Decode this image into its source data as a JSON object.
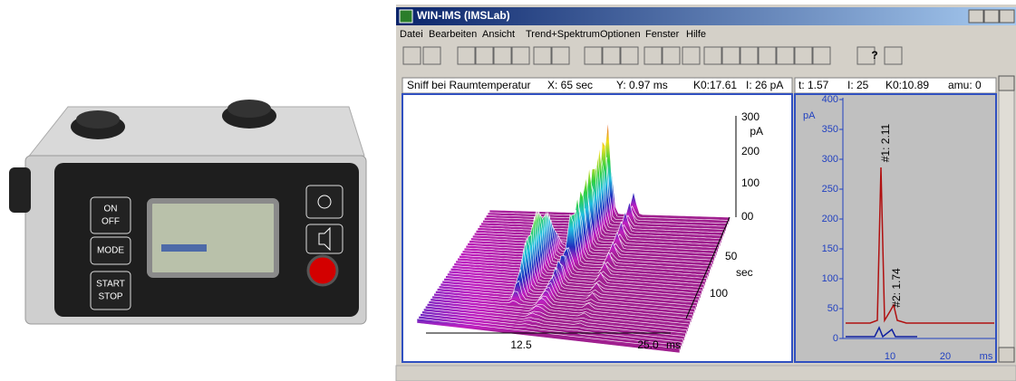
{
  "device": {
    "buttons": {
      "on_off": [
        "ON",
        "OFF"
      ],
      "mode": "MODE",
      "start_stop": [
        "START",
        "STOP"
      ]
    }
  },
  "window": {
    "title": "WIN-IMS (IMSLab)",
    "menu": [
      "Datei",
      "Bearbeiten",
      "Ansicht",
      "Trend+Spektrum",
      "Optionen",
      "Fenster",
      "Hilfe"
    ],
    "toolbar_help": "?",
    "status_left": [
      "Sniff bei Raumtemperatur",
      "X: 65 sec",
      "Y: 0.97 ms",
      "K0:17.61",
      "I: 26 pA"
    ],
    "status_right": [
      "t: 1.57",
      "I: 25",
      "K0:10.89",
      "amu:  0"
    ]
  },
  "waterfall": {
    "z_ticks": [
      "300",
      "200",
      "100",
      "00"
    ],
    "z_unit": "pA",
    "depth_ticks": [
      "50",
      "100"
    ],
    "depth_unit": "sec",
    "x_ticks": [
      "12.5",
      "25.0"
    ],
    "x_unit": "ms"
  },
  "spectrum": {
    "y_unit": "pA",
    "y_ticks": [
      "400",
      "350",
      "300",
      "250",
      "200",
      "150",
      "100",
      "50",
      "0"
    ],
    "x_ticks": [
      "10",
      "20"
    ],
    "x_unit": "ms",
    "peak_labels": [
      "#1: 2.11",
      "#2: 1.74"
    ]
  }
}
